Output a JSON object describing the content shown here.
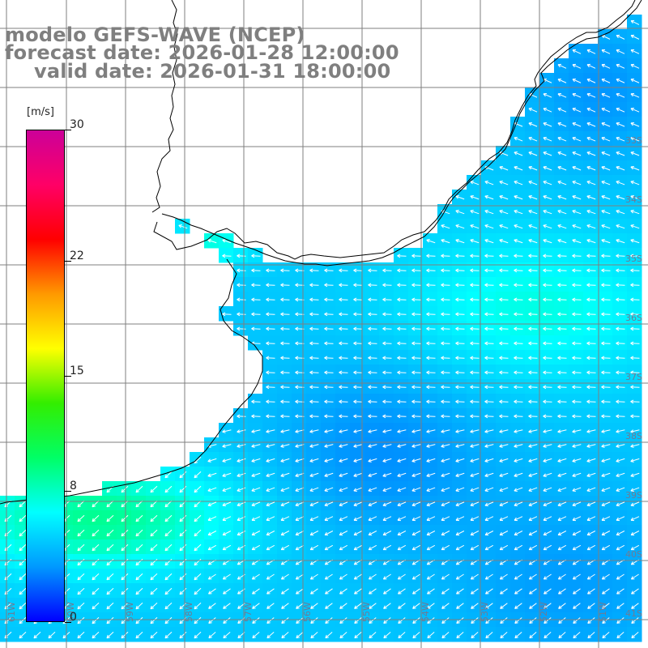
{
  "title": {
    "model": "modelo GEFS-WAVE (NCEP)",
    "forecast": "forecast date: 2026-01-28 12:00:00",
    "valid": "valid date: 2026-01-31 18:00:00"
  },
  "colorbar": {
    "unit": "[m/s]",
    "min": 0,
    "max": 30,
    "ticks": [
      {
        "value": 30,
        "label": "30"
      },
      {
        "value": 22,
        "label": "22"
      },
      {
        "value": 15,
        "label": "15"
      },
      {
        "value": 8,
        "label": "8"
      },
      {
        "value": 0,
        "label": "0"
      }
    ],
    "colors": [
      "#0000ff",
      "#0099ff",
      "#00ffff",
      "#00ff66",
      "#33ee00",
      "#ffff00",
      "#ff9900",
      "#ff0000",
      "#ff0066",
      "#cc0099"
    ]
  },
  "map": {
    "lat_labels": [
      "33S",
      "34S",
      "35S",
      "36S",
      "37S",
      "38S",
      "39S",
      "40S",
      "41S"
    ],
    "lon_labels": [
      "61W",
      "60W",
      "59W",
      "58W",
      "57W",
      "56W",
      "55W",
      "54W",
      "53W",
      "52W",
      "51W"
    ],
    "land_color": "#ffffff",
    "grid_color": "#7f7f7f",
    "vector_color": "#ffffff",
    "coast_color": "#000000"
  }
}
